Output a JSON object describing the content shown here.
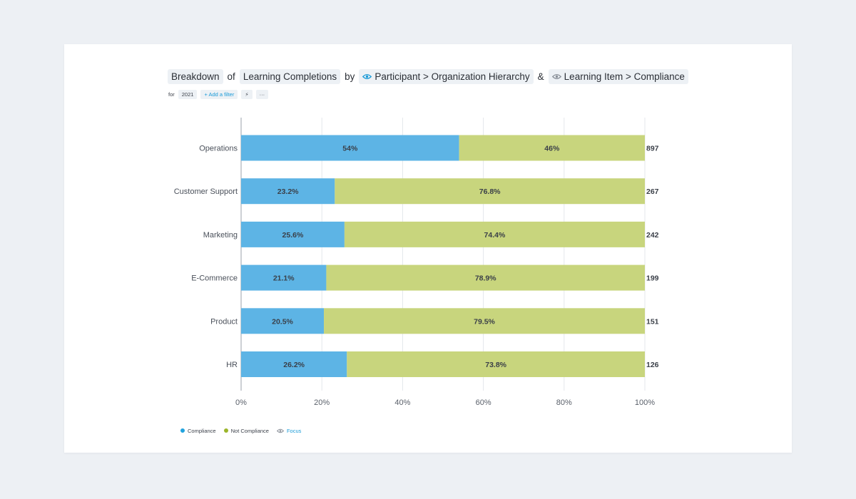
{
  "header": {
    "breakdown": "Breakdown",
    "of": "of",
    "metric": "Learning Completions",
    "by": "by",
    "dimension1": "Participant > Organization Hierarchy",
    "amp": "&",
    "dimension2": "Learning Item > Compliance"
  },
  "filters": {
    "for_label": "for",
    "year": "2021",
    "add_filter": "+ Add a filter",
    "bolt": "⚡",
    "more": "···"
  },
  "legend": {
    "compliance": "Compliance",
    "not_compliance": "Not Compliance",
    "focus": "Focus"
  },
  "colors": {
    "compliance": "#5db4e5",
    "not_compliance": "#c8d57d",
    "compliance_dot": "#22a3de",
    "not_compliance_dot": "#9bb52a",
    "accent": "#1b9bd8"
  },
  "chart_data": {
    "type": "bar",
    "orientation": "horizontal",
    "stacked": "percent",
    "categories": [
      "Operations",
      "Customer Support",
      "Marketing",
      "E-Commerce",
      "Product",
      "HR"
    ],
    "series": [
      {
        "name": "Compliance",
        "values": [
          54,
          23.2,
          25.6,
          21.1,
          20.5,
          26.2
        ],
        "labels": [
          "54%",
          "23.2%",
          "25.6%",
          "21.1%",
          "20.5%",
          "26.2%"
        ]
      },
      {
        "name": "Not Compliance",
        "values": [
          46,
          76.8,
          74.4,
          78.9,
          79.5,
          73.8
        ],
        "labels": [
          "46%",
          "76.8%",
          "74.4%",
          "78.9%",
          "79.5%",
          "73.8%"
        ]
      }
    ],
    "totals": [
      897,
      267,
      242,
      199,
      151,
      126
    ],
    "xlim": [
      0,
      100
    ],
    "xticks": [
      0,
      20,
      40,
      60,
      80,
      100
    ],
    "xtick_labels": [
      "0%",
      "20%",
      "40%",
      "60%",
      "80%",
      "100%"
    ],
    "grid": true,
    "legend_position": "bottom-left"
  }
}
